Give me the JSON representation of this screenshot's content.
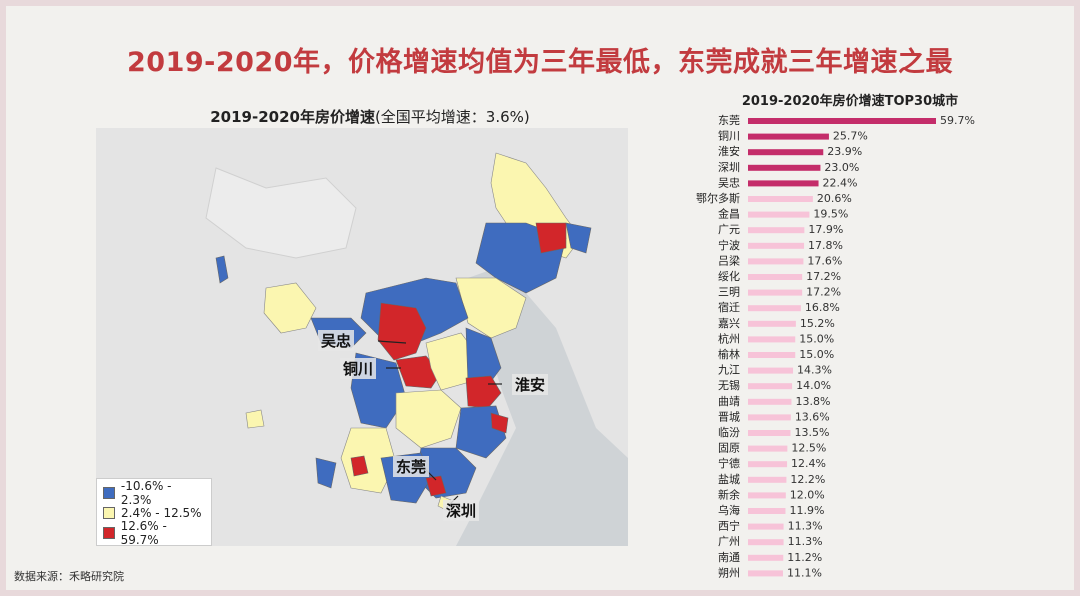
{
  "slide": {
    "title": "2019-2020年，价格增速均值为三年最低，东莞成就三年增速之最",
    "source": "数据来源：禾略研究院"
  },
  "map": {
    "title_bold": "2019-2020年房价增速",
    "title_rest": "(全国平均增速：3.6%)",
    "legend": [
      {
        "label": "-10.6% - 2.3%",
        "color": "#3f6cbf"
      },
      {
        "label": "2.4% - 12.5%",
        "color": "#fbf6b0"
      },
      {
        "label": "12.6% - 59.7%",
        "color": "#d2262a"
      }
    ],
    "callouts": [
      "吴忠",
      "铜川",
      "淮安",
      "东莞",
      "深圳"
    ]
  },
  "chart_data": {
    "type": "bar",
    "title": "2019-2020年房价增速TOP30城市",
    "orientation": "horizontal",
    "categories": [
      "东莞",
      "铜川",
      "淮安",
      "深圳",
      "吴忠",
      "鄂尔多斯",
      "金昌",
      "广元",
      "宁波",
      "吕梁",
      "绥化",
      "三明",
      "宿迁",
      "嘉兴",
      "杭州",
      "榆林",
      "九江",
      "无锡",
      "曲靖",
      "晋城",
      "临汾",
      "固原",
      "宁德",
      "盐城",
      "新余",
      "乌海",
      "西宁",
      "广州",
      "南通",
      "朔州"
    ],
    "values": [
      59.7,
      25.7,
      23.9,
      23.0,
      22.4,
      20.6,
      19.5,
      17.9,
      17.8,
      17.6,
      17.2,
      17.2,
      16.8,
      15.2,
      15.0,
      15.0,
      14.3,
      14.0,
      13.8,
      13.6,
      13.5,
      12.5,
      12.4,
      12.2,
      12.0,
      11.9,
      11.3,
      11.3,
      11.2,
      11.1
    ],
    "labels": [
      "59.7%",
      "25.7%",
      "23.9%",
      "23.0%",
      "22.4%",
      "20.6%",
      "19.5%",
      "17.9%",
      "17.8%",
      "17.6%",
      "17.2%",
      "17.2%",
      "16.8%",
      "15.2%",
      "15.0%",
      "15.0%",
      "14.3%",
      "14.0%",
      "13.8%",
      "13.6%",
      "13.5%",
      "12.5%",
      "12.4%",
      "12.2%",
      "12.0%",
      "11.9%",
      "11.3%",
      "11.3%",
      "11.2%",
      "11.1%"
    ],
    "colors": {
      "top5": "#c42d6a",
      "rest": "#f7c3d8"
    }
  }
}
